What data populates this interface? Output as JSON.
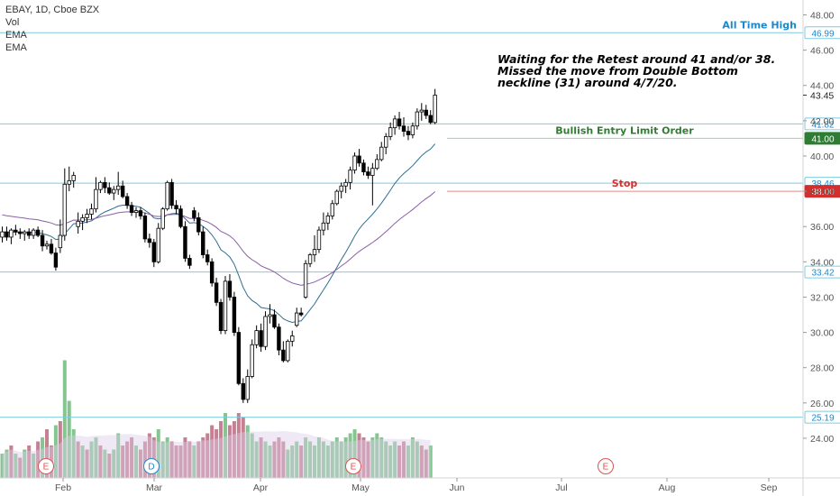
{
  "header": {
    "symbol_line": "EBAY, 1D, Cboe BZX",
    "indicators": [
      "Vol",
      "EMA",
      "EMA"
    ]
  },
  "annotation_text": "Waiting for the Retest around 41 and/or 38.\nMissed the move from Double Bottom\nneckline (31) around 4/7/20.",
  "colors": {
    "up": "#ffffff",
    "down": "#000000",
    "wick": "#000000",
    "vol_up": "#7dc28a",
    "vol_down": "#c4788c",
    "ema_fast": "#2f6e8e",
    "ema_slow": "#8a5fa6",
    "hline": "#7fcce0",
    "entry": "#2e7d32",
    "stop": "#d32f2f",
    "ath": "#1e88c7"
  },
  "chart_data": {
    "type": "candlestick",
    "y_axis": {
      "ticks": [
        "24.00",
        "26.00",
        "28.00",
        "30.00",
        "32.00",
        "34.00",
        "36.00",
        "38.00",
        "40.00",
        "42.00",
        "44.00",
        "46.00",
        "48.00"
      ],
      "range": [
        22.6,
        48.8
      ]
    },
    "x_axis": {
      "ticks": [
        "Feb",
        "Mar",
        "Apr",
        "May",
        "Jun",
        "Jul",
        "Aug",
        "Sep"
      ]
    },
    "grid": false,
    "horizontal_levels": [
      {
        "price": 46.99,
        "tag": "46.99",
        "label": "All Time High",
        "kind": "ath"
      },
      {
        "price": 41.82,
        "tag": "41.82",
        "label": "",
        "kind": "support"
      },
      {
        "price": 41.0,
        "tag": "41.00",
        "label": "Bullish Entry Limit Order",
        "kind": "entry"
      },
      {
        "price": 38.46,
        "tag": "38.46",
        "label": "",
        "kind": "support"
      },
      {
        "price": 38.0,
        "tag": "38.00",
        "label": "Stop",
        "kind": "stop"
      },
      {
        "price": 33.42,
        "tag": "33.42",
        "label": "",
        "kind": "support"
      },
      {
        "price": 25.19,
        "tag": "25.19",
        "label": "",
        "kind": "support"
      }
    ],
    "last_price": {
      "value": 43.45,
      "tag": "43.45"
    },
    "candles": [
      [
        35.4,
        36.0,
        35.1,
        35.7
      ],
      [
        35.7,
        36.0,
        35.2,
        35.4
      ],
      [
        35.4,
        35.9,
        35.0,
        35.8
      ],
      [
        35.8,
        36.1,
        35.5,
        35.7
      ],
      [
        35.7,
        35.9,
        35.3,
        35.6
      ],
      [
        35.6,
        35.8,
        35.2,
        35.7
      ],
      [
        35.7,
        35.9,
        35.3,
        35.5
      ],
      [
        35.5,
        35.9,
        35.3,
        35.8
      ],
      [
        35.8,
        36.0,
        35.4,
        35.5
      ],
      [
        35.5,
        35.8,
        34.6,
        34.9
      ],
      [
        34.9,
        35.2,
        34.7,
        35.0
      ],
      [
        35.0,
        35.3,
        34.4,
        34.5
      ],
      [
        34.5,
        34.8,
        33.5,
        33.7
      ],
      [
        34.8,
        36.4,
        34.5,
        35.5
      ],
      [
        35.5,
        39.3,
        35.2,
        38.4
      ],
      [
        38.4,
        39.4,
        38.0,
        38.6
      ],
      [
        38.6,
        39.1,
        38.2,
        38.9
      ],
      [
        36.0,
        36.8,
        35.6,
        36.3
      ],
      [
        36.3,
        36.7,
        35.8,
        36.5
      ],
      [
        36.5,
        37.0,
        36.2,
        36.7
      ],
      [
        36.7,
        37.3,
        36.4,
        37.0
      ],
      [
        37.0,
        38.8,
        36.8,
        38.1
      ],
      [
        38.1,
        38.6,
        37.9,
        38.5
      ],
      [
        38.5,
        38.8,
        37.9,
        38.2
      ],
      [
        38.2,
        38.5,
        37.8,
        37.9
      ],
      [
        37.9,
        38.3,
        37.5,
        38.1
      ],
      [
        38.1,
        39.1,
        37.8,
        38.3
      ],
      [
        38.3,
        38.6,
        37.6,
        37.7
      ],
      [
        37.7,
        37.9,
        37.0,
        37.2
      ],
      [
        37.2,
        37.4,
        36.6,
        36.8
      ],
      [
        36.8,
        37.1,
        36.5,
        36.9
      ],
      [
        36.9,
        37.1,
        36.4,
        36.6
      ],
      [
        36.6,
        36.8,
        35.1,
        35.3
      ],
      [
        35.3,
        35.6,
        34.8,
        35.1
      ],
      [
        35.1,
        35.3,
        33.7,
        34.0
      ],
      [
        34.0,
        36.2,
        33.9,
        35.9
      ],
      [
        35.9,
        37.1,
        35.8,
        37.0
      ],
      [
        37.0,
        38.6,
        36.9,
        38.5
      ],
      [
        38.5,
        38.7,
        37.0,
        37.2
      ],
      [
        37.2,
        37.5,
        36.7,
        37.0
      ],
      [
        37.0,
        37.2,
        35.9,
        36.0
      ],
      [
        36.0,
        36.3,
        34.0,
        34.2
      ],
      [
        34.2,
        34.4,
        33.6,
        33.8
      ],
      [
        36.9,
        37.1,
        36.3,
        36.5
      ],
      [
        36.5,
        36.8,
        35.5,
        35.7
      ],
      [
        35.7,
        36.0,
        34.2,
        34.4
      ],
      [
        34.4,
        34.7,
        33.8,
        34.0
      ],
      [
        34.0,
        34.2,
        32.6,
        32.8
      ],
      [
        32.8,
        33.1,
        31.5,
        31.7
      ],
      [
        31.7,
        31.9,
        29.9,
        30.1
      ],
      [
        30.1,
        33.2,
        29.9,
        32.9
      ],
      [
        32.9,
        33.3,
        31.8,
        32.0
      ],
      [
        32.0,
        32.3,
        29.8,
        30.0
      ],
      [
        30.0,
        30.3,
        27.0,
        27.1
      ],
      [
        27.1,
        27.4,
        26.0,
        26.2
      ],
      [
        26.2,
        27.9,
        26.0,
        27.5
      ],
      [
        27.5,
        29.6,
        27.4,
        29.3
      ],
      [
        29.3,
        30.4,
        29.1,
        30.1
      ],
      [
        30.1,
        30.5,
        28.9,
        29.2
      ],
      [
        29.2,
        31.2,
        29.0,
        30.9
      ],
      [
        30.9,
        31.6,
        30.5,
        31.0
      ],
      [
        31.0,
        31.3,
        30.2,
        30.3
      ],
      [
        30.3,
        30.5,
        28.7,
        29.0
      ],
      [
        29.0,
        29.5,
        28.3,
        28.4
      ],
      [
        28.4,
        29.6,
        28.3,
        29.5
      ],
      [
        29.5,
        30.1,
        29.2,
        29.8
      ],
      [
        30.4,
        31.4,
        30.3,
        31.1
      ],
      [
        31.1,
        31.4,
        30.9,
        31.0
      ],
      [
        32.0,
        34.1,
        31.9,
        33.9
      ],
      [
        33.9,
        34.5,
        33.7,
        34.4
      ],
      [
        34.4,
        35.5,
        34.0,
        34.7
      ],
      [
        34.7,
        36.0,
        34.5,
        35.8
      ],
      [
        35.8,
        36.8,
        35.5,
        36.2
      ],
      [
        36.2,
        36.8,
        35.8,
        36.6
      ],
      [
        36.6,
        37.5,
        36.4,
        37.3
      ],
      [
        37.3,
        38.1,
        37.2,
        38.0
      ],
      [
        38.0,
        38.5,
        37.6,
        38.3
      ],
      [
        38.3,
        38.7,
        37.9,
        38.5
      ],
      [
        38.5,
        39.4,
        38.1,
        39.2
      ],
      [
        39.2,
        40.2,
        39.0,
        40.0
      ],
      [
        40.0,
        40.4,
        39.4,
        39.6
      ],
      [
        39.6,
        39.8,
        38.9,
        39.1
      ],
      [
        39.1,
        39.4,
        38.7,
        38.9
      ],
      [
        38.9,
        39.6,
        37.2,
        39.3
      ],
      [
        39.3,
        40.1,
        39.2,
        39.8
      ],
      [
        39.8,
        40.8,
        39.7,
        40.5
      ],
      [
        40.5,
        41.3,
        40.1,
        41.1
      ],
      [
        41.1,
        41.9,
        40.9,
        41.6
      ],
      [
        41.6,
        42.3,
        41.2,
        42.1
      ],
      [
        42.1,
        42.5,
        41.5,
        41.7
      ],
      [
        41.7,
        42.2,
        41.1,
        41.4
      ],
      [
        41.4,
        41.7,
        40.9,
        41.2
      ],
      [
        41.2,
        41.9,
        41.0,
        41.7
      ],
      [
        41.7,
        42.7,
        41.5,
        42.5
      ],
      [
        42.5,
        43.0,
        42.0,
        42.6
      ],
      [
        42.6,
        42.9,
        42.1,
        42.3
      ],
      [
        42.3,
        42.6,
        41.8,
        41.9
      ],
      [
        41.9,
        43.8,
        41.8,
        43.45
      ]
    ],
    "volume": [
      [
        6,
        1
      ],
      [
        7,
        1
      ],
      [
        8,
        0
      ],
      [
        6,
        1
      ],
      [
        5,
        0
      ],
      [
        7,
        1
      ],
      [
        8,
        0
      ],
      [
        6,
        1
      ],
      [
        9,
        0
      ],
      [
        10,
        1
      ],
      [
        12,
        0
      ],
      [
        8,
        0
      ],
      [
        13,
        1
      ],
      [
        14,
        0
      ],
      [
        29,
        1
      ],
      [
        19,
        1
      ],
      [
        12,
        1
      ],
      [
        9,
        0
      ],
      [
        8,
        1
      ],
      [
        7,
        0
      ],
      [
        9,
        1
      ],
      [
        10,
        1
      ],
      [
        8,
        0
      ],
      [
        7,
        1
      ],
      [
        6,
        0
      ],
      [
        7,
        1
      ],
      [
        11,
        1
      ],
      [
        8,
        0
      ],
      [
        9,
        0
      ],
      [
        10,
        0
      ],
      [
        8,
        1
      ],
      [
        7,
        0
      ],
      [
        9,
        0
      ],
      [
        11,
        0
      ],
      [
        10,
        0
      ],
      [
        12,
        1
      ],
      [
        9,
        1
      ],
      [
        10,
        1
      ],
      [
        9,
        0
      ],
      [
        8,
        0
      ],
      [
        8,
        0
      ],
      [
        10,
        0
      ],
      [
        9,
        0
      ],
      [
        8,
        1
      ],
      [
        9,
        0
      ],
      [
        10,
        0
      ],
      [
        11,
        0
      ],
      [
        13,
        0
      ],
      [
        12,
        0
      ],
      [
        14,
        0
      ],
      [
        16,
        1
      ],
      [
        13,
        0
      ],
      [
        14,
        0
      ],
      [
        16,
        0
      ],
      [
        15,
        0
      ],
      [
        13,
        1
      ],
      [
        11,
        1
      ],
      [
        9,
        1
      ],
      [
        10,
        0
      ],
      [
        9,
        1
      ],
      [
        8,
        1
      ],
      [
        9,
        0
      ],
      [
        10,
        0
      ],
      [
        9,
        0
      ],
      [
        7,
        1
      ],
      [
        8,
        1
      ],
      [
        9,
        1
      ],
      [
        8,
        0
      ],
      [
        10,
        1
      ],
      [
        9,
        1
      ],
      [
        8,
        1
      ],
      [
        10,
        1
      ],
      [
        9,
        1
      ],
      [
        8,
        1
      ],
      [
        9,
        1
      ],
      [
        10,
        1
      ],
      [
        9,
        1
      ],
      [
        10,
        1
      ],
      [
        11,
        1
      ],
      [
        12,
        1
      ],
      [
        11,
        0
      ],
      [
        10,
        0
      ],
      [
        9,
        0
      ],
      [
        10,
        1
      ],
      [
        11,
        1
      ],
      [
        10,
        1
      ],
      [
        9,
        1
      ],
      [
        8,
        1
      ],
      [
        9,
        1
      ],
      [
        8,
        0
      ],
      [
        9,
        0
      ],
      [
        8,
        1
      ],
      [
        10,
        1
      ],
      [
        9,
        1
      ],
      [
        8,
        0
      ],
      [
        7,
        0
      ],
      [
        8,
        1
      ]
    ],
    "earnings_markers": [
      {
        "label": "E",
        "at": "late-Jan"
      },
      {
        "label": "E",
        "at": "late-Apr"
      },
      {
        "label": "E",
        "at": "late-Jul"
      }
    ],
    "dividend_markers": [
      {
        "label": "D",
        "at": "late-Feb"
      }
    ]
  }
}
